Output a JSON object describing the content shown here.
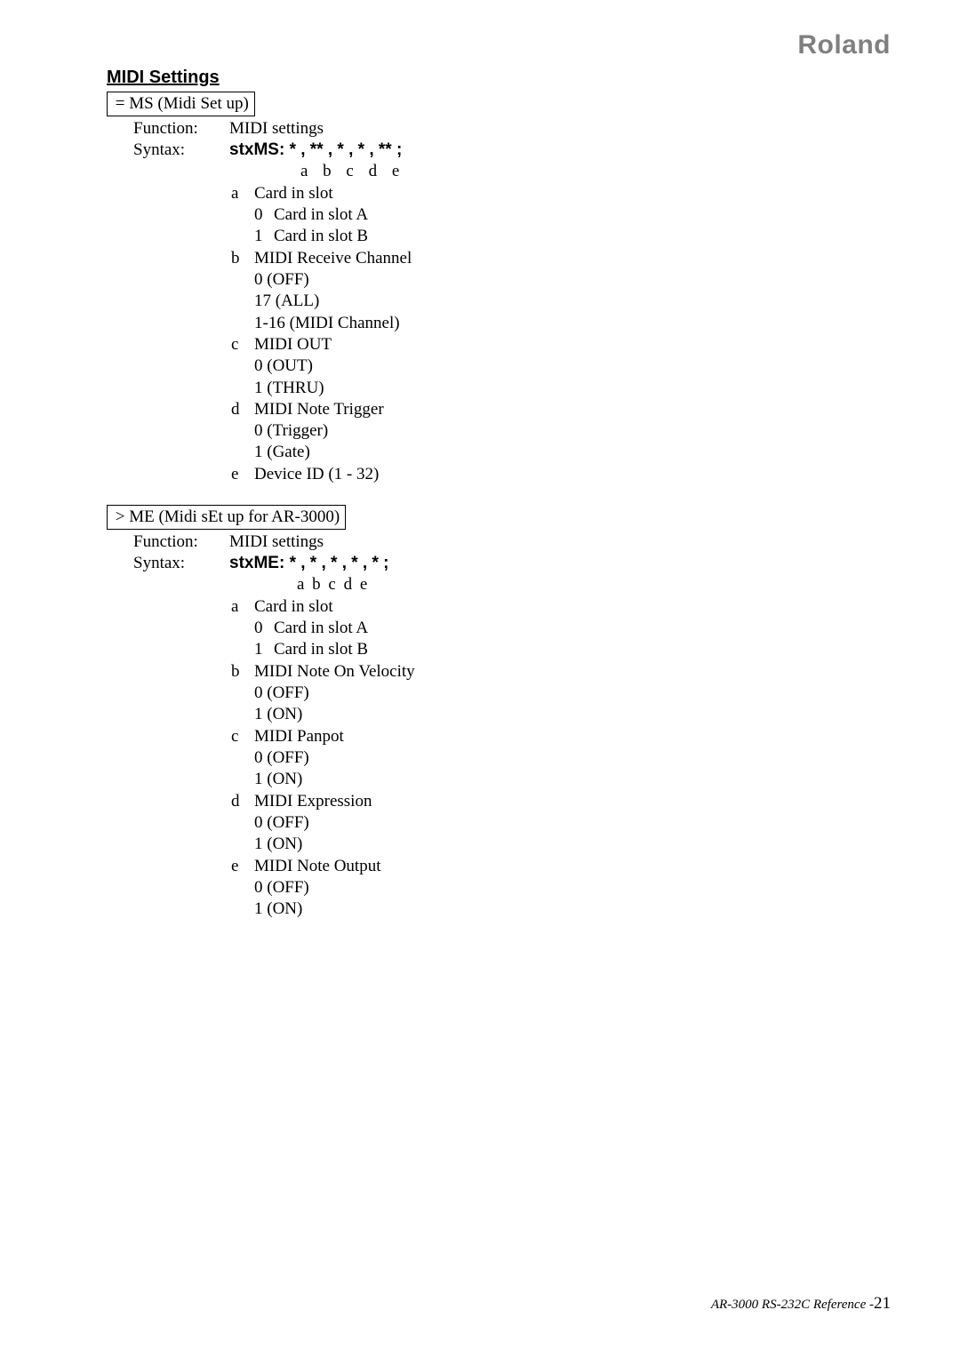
{
  "brand": "Roland",
  "section_title": "MIDI Settings",
  "block1": {
    "box": " = MS (Midi Set up)",
    "function_label": "Function:",
    "function_value": "MIDI settings",
    "syntax_label": "Syntax:",
    "syntax_value": "stxMS: * , ** , * , * , ** ;",
    "letters": "a   b   c   d   e",
    "params": {
      "a_label": "a",
      "a_text": "Card in slot",
      "a_sub0_num": "0",
      "a_sub0_text": "Card in slot A",
      "a_sub1_num": "1",
      "a_sub1_text": "Card in slot B",
      "b_label": "b",
      "b_text": "MIDI Receive Channel",
      "b_line1": "0 (OFF)",
      "b_line2": "17 (ALL)",
      "b_line3": "1-16   (MIDI Channel)",
      "c_label": "c",
      "c_text": "MIDI OUT",
      "c_line1": "0 (OUT)",
      "c_line2": "1 (THRU)",
      "d_label": "d",
      "d_text": "MIDI Note Trigger",
      "d_line1": "0 (Trigger)",
      "d_line2": "1 (Gate)",
      "e_label": "e",
      "e_text": "Device ID (1 - 32)"
    }
  },
  "block2": {
    "box": " > ME (Midi sEt up for AR-3000)",
    "function_label": "Function:",
    "function_value": "MIDI settings",
    "syntax_label": "Syntax:",
    "syntax_value": "stxME: * , * , * , * , * ;",
    "letters": "a  b   c   d   e",
    "params": {
      "a_label": "a",
      "a_text": "Card in slot",
      "a_sub0_num": "0",
      "a_sub0_text": "Card in slot A",
      "a_sub1_num": "1",
      "a_sub1_text": "Card in slot B",
      "b_label": "b",
      "b_text": "MIDI Note On Velocity",
      "b_line1": "0 (OFF)",
      "b_line2": "1 (ON)",
      "c_label": "c",
      "c_text": "MIDI Panpot",
      "c_line1": "0 (OFF)",
      "c_line2": "1 (ON)",
      "d_label": "d",
      "d_text": "MIDI Expression",
      "d_line1": "0 (OFF)",
      "d_line2": "1 (ON)",
      "e_label": "e",
      "e_text": "MIDI Note Output",
      "e_line1": "0 (OFF)",
      "e_line2": "1 (ON)"
    }
  },
  "footer_text": "AR-3000 RS-232C Reference  -",
  "footer_page": "21"
}
